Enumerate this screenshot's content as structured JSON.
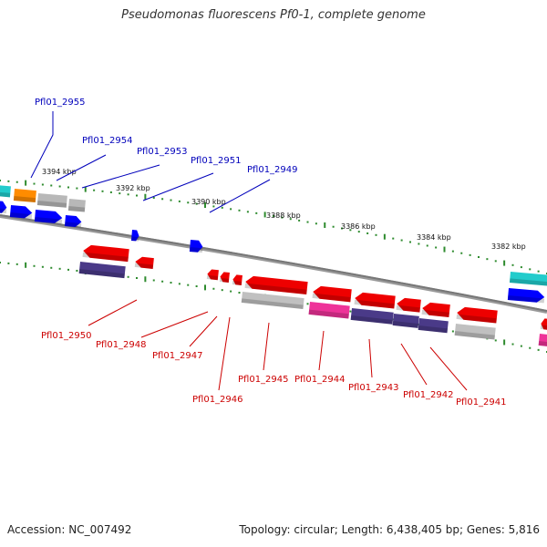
{
  "title": "Pseudomonas fluorescens Pf0-1, complete genome",
  "footer": {
    "accession": "Accession: NC_007492",
    "summary": "Topology: circular; Length: 6,438,405 bp; Genes: 5,816"
  },
  "colors": {
    "forward_label": "#0000bb",
    "reverse_label": "#cc0000",
    "backbone": "#777777",
    "tick": "#2e8b2e"
  },
  "kbp_ticks": [
    {
      "id": "3394",
      "label": "3394 kbp"
    },
    {
      "id": "3392",
      "label": "3392 kbp"
    },
    {
      "id": "3390",
      "label": "3390 kbp"
    },
    {
      "id": "3388",
      "label": "3388 kbp"
    },
    {
      "id": "3386",
      "label": "3386 kbp"
    },
    {
      "id": "3384",
      "label": "3384 kbp"
    },
    {
      "id": "3382",
      "label": "3382 kbp"
    }
  ],
  "forward_labels": [
    {
      "id": "2955",
      "label": "Pfl01_2955"
    },
    {
      "id": "2954",
      "label": "Pfl01_2954"
    },
    {
      "id": "2953",
      "label": "Pfl01_2953"
    },
    {
      "id": "2951",
      "label": "Pfl01_2951"
    },
    {
      "id": "2949",
      "label": "Pfl01_2949"
    }
  ],
  "reverse_labels": [
    {
      "id": "2950",
      "label": "Pfl01_2950"
    },
    {
      "id": "2948",
      "label": "Pfl01_2948"
    },
    {
      "id": "2947",
      "label": "Pfl01_2947"
    },
    {
      "id": "2946",
      "label": "Pfl01_2946"
    },
    {
      "id": "2945",
      "label": "Pfl01_2945"
    },
    {
      "id": "2944",
      "label": "Pfl01_2944"
    },
    {
      "id": "2943",
      "label": "Pfl01_2943"
    },
    {
      "id": "2942",
      "label": "Pfl01_2942"
    },
    {
      "id": "2941",
      "label": "Pfl01_2941"
    }
  ]
}
